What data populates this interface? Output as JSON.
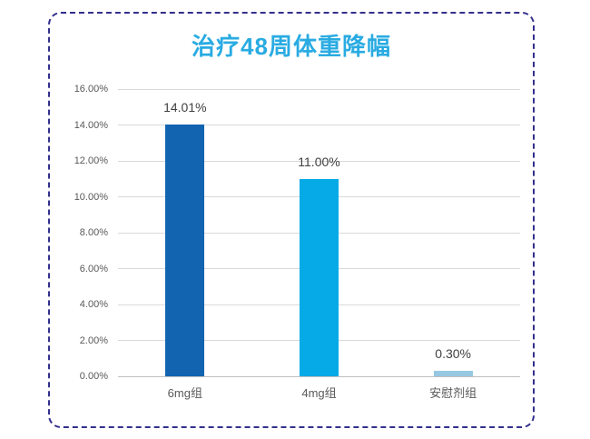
{
  "frame": {
    "border_color": "#32308C"
  },
  "chart_data": {
    "type": "bar",
    "title": "治疗48周体重降幅",
    "title_color": "#29ABE2",
    "categories": [
      "6mg组",
      "4mg组",
      "安慰剂组"
    ],
    "values": [
      14.01,
      11.0,
      0.3
    ],
    "data_labels": [
      "14.01%",
      "11.00%",
      "0.30%"
    ],
    "bar_colors": [
      "#1264B0",
      "#05AAE6",
      "#96C8E3"
    ],
    "xlabel": "",
    "ylabel": "",
    "ylim": [
      0,
      16
    ],
    "ytick_step": 2,
    "ytick_labels": [
      "0.00%",
      "2.00%",
      "4.00%",
      "6.00%",
      "8.00%",
      "10.00%",
      "12.00%",
      "14.00%",
      "16.00%"
    ],
    "grid": true,
    "legend": false,
    "grid_color": "#D9D9D9",
    "axis_line_color": "#BFBFBF",
    "tick_label_color": "#595959",
    "data_label_color": "#404040"
  }
}
